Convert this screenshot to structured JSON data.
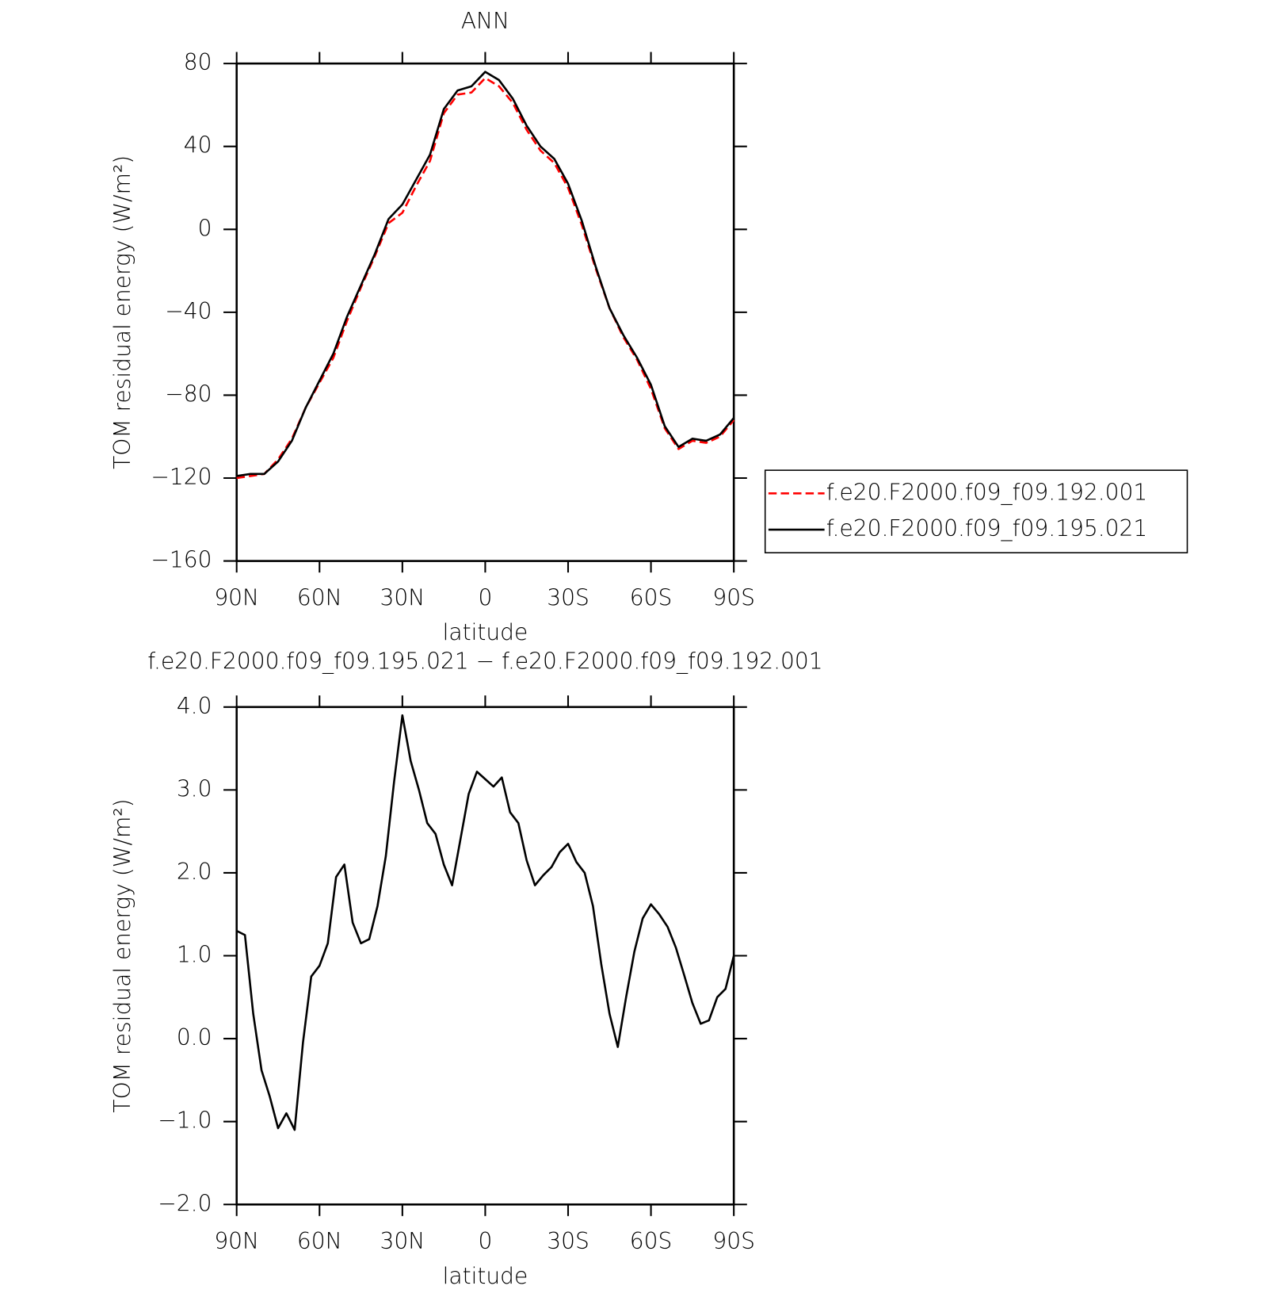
{
  "chart_data": [
    {
      "type": "line",
      "title": "ANN",
      "xlabel": "latitude",
      "ylabel": "TOM residual energy (W/m²)",
      "x": [
        90,
        85,
        80,
        75,
        70,
        65,
        60,
        55,
        50,
        45,
        40,
        35,
        30,
        25,
        20,
        15,
        10,
        5,
        0,
        -5,
        -10,
        -15,
        -20,
        -25,
        -30,
        -35,
        -40,
        -45,
        -50,
        -55,
        -60,
        -65,
        -70,
        -75,
        -80,
        -85,
        -90
      ],
      "xlim": [
        90,
        -90
      ],
      "xticks": [
        {
          "value": 90,
          "label": "90N"
        },
        {
          "value": 60,
          "label": "60N"
        },
        {
          "value": 30,
          "label": "30N"
        },
        0,
        {
          "value": -30,
          "label": "30S"
        },
        {
          "value": -60,
          "label": "60S"
        },
        {
          "value": -90,
          "label": "90S"
        }
      ],
      "ylim": [
        -160,
        80
      ],
      "yticks": [
        80,
        40,
        0,
        {
          "value": -40,
          "label": "−40"
        },
        {
          "value": -80,
          "label": "−80"
        },
        {
          "value": -120,
          "label": "−120"
        },
        {
          "value": -160,
          "label": "−160"
        }
      ],
      "legend": "right",
      "series": [
        {
          "name": "f.e20.F2000.f09_f09.192.001",
          "color": "#ff0000",
          "style": "dashed",
          "values": [
            -120,
            -119,
            -118,
            -111,
            -101,
            -86,
            -74,
            -62,
            -44,
            -28,
            -13,
            3,
            8,
            21,
            33,
            56,
            65,
            66,
            73,
            69,
            61,
            48,
            38,
            32,
            20,
            2,
            -19,
            -38,
            -52,
            -63,
            -77,
            -96,
            -106,
            -102,
            -103,
            -100,
            -92
          ]
        },
        {
          "name": "f.e20.F2000.f09_f09.195.021",
          "color": "#000000",
          "style": "solid",
          "values": [
            -119,
            -118,
            -118,
            -112,
            -102,
            -86,
            -73,
            -60,
            -42,
            -27,
            -12,
            5,
            12,
            24,
            36,
            58,
            67,
            69,
            76,
            72,
            63,
            50,
            40,
            34,
            22,
            4,
            -18,
            -38,
            -51,
            -62,
            -75,
            -95,
            -105,
            -101,
            -102,
            -99,
            -91
          ]
        }
      ]
    },
    {
      "type": "line",
      "title": "f.e20.F2000.f09_f09.195.021 − f.e20.F2000.f09_f09.192.001",
      "xlabel": "latitude",
      "ylabel": "TOM residual energy (W/m²)",
      "x": [
        90,
        87,
        84,
        81,
        78,
        75,
        72,
        69,
        66,
        63,
        60,
        57,
        54,
        51,
        48,
        45,
        42,
        39,
        36,
        33,
        30,
        27,
        24,
        21,
        18,
        15,
        12,
        9,
        6,
        3,
        0,
        -3,
        -6,
        -9,
        -12,
        -15,
        -18,
        -21,
        -24,
        -27,
        -30,
        -33,
        -36,
        -39,
        -42,
        -45,
        -48,
        -51,
        -54,
        -57,
        -60,
        -63,
        -66,
        -69,
        -72,
        -75,
        -78,
        -81,
        -84,
        -87,
        -90
      ],
      "xlim": [
        90,
        -90
      ],
      "xticks": [
        {
          "value": 90,
          "label": "90N"
        },
        {
          "value": 60,
          "label": "60N"
        },
        {
          "value": 30,
          "label": "30N"
        },
        0,
        {
          "value": -30,
          "label": "30S"
        },
        {
          "value": -60,
          "label": "60S"
        },
        {
          "value": -90,
          "label": "90S"
        }
      ],
      "ylim": [
        -2,
        4
      ],
      "yticks": [
        {
          "value": 4,
          "label": "4.0"
        },
        {
          "value": 3,
          "label": "3.0"
        },
        {
          "value": 2,
          "label": "2.0"
        },
        {
          "value": 1,
          "label": "1.0"
        },
        {
          "value": 0,
          "label": "0.0"
        },
        {
          "value": -1,
          "label": "−1.0"
        },
        {
          "value": -2,
          "label": "−2.0"
        }
      ],
      "series": [
        {
          "color": "#000000",
          "style": "solid",
          "values": [
            1.3,
            1.25,
            0.3,
            -0.38,
            -0.7,
            -1.08,
            -0.9,
            -1.1,
            -0.05,
            0.75,
            0.88,
            1.15,
            1.95,
            2.1,
            1.4,
            1.15,
            1.2,
            1.6,
            2.2,
            3.1,
            3.9,
            3.35,
            3.0,
            2.6,
            2.47,
            2.1,
            1.85,
            2.4,
            2.95,
            3.22,
            3.13,
            3.04,
            3.15,
            2.73,
            2.6,
            2.15,
            1.85,
            1.97,
            2.07,
            2.25,
            2.35,
            2.13,
            2.0,
            1.6,
            0.9,
            0.3,
            -0.1,
            0.5,
            1.05,
            1.45,
            1.62,
            1.5,
            1.35,
            1.1,
            0.77,
            0.43,
            0.18,
            0.22,
            0.5,
            0.6,
            1.0
          ]
        }
      ]
    }
  ]
}
